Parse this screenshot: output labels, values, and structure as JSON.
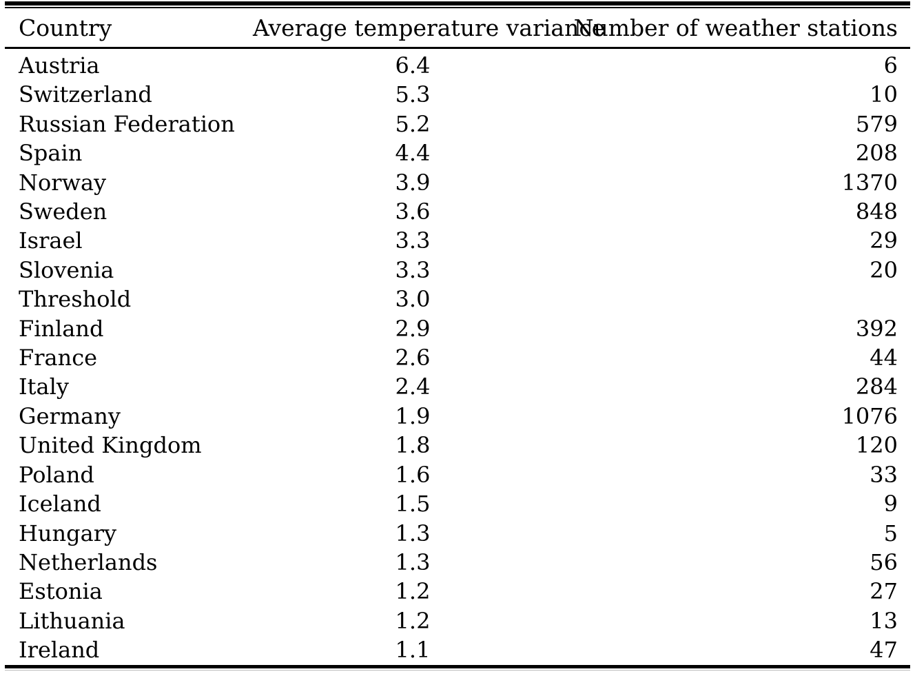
{
  "table": {
    "columns": [
      "Country",
      "Average temperature variance",
      "Number of weather stations"
    ],
    "rows": [
      {
        "country": "Austria",
        "variance": "6.4",
        "stations": "6"
      },
      {
        "country": "Switzerland",
        "variance": "5.3",
        "stations": "10"
      },
      {
        "country": "Russian Federation",
        "variance": "5.2",
        "stations": "579"
      },
      {
        "country": "Spain",
        "variance": "4.4",
        "stations": "208"
      },
      {
        "country": "Norway",
        "variance": "3.9",
        "stations": "1370"
      },
      {
        "country": "Sweden",
        "variance": "3.6",
        "stations": "848"
      },
      {
        "country": "Israel",
        "variance": "3.3",
        "stations": "29"
      },
      {
        "country": "Slovenia",
        "variance": "3.3",
        "stations": "20"
      },
      {
        "country": "Threshold",
        "variance": "3.0",
        "stations": ""
      },
      {
        "country": "Finland",
        "variance": "2.9",
        "stations": "392"
      },
      {
        "country": "France",
        "variance": "2.6",
        "stations": "44"
      },
      {
        "country": "Italy",
        "variance": "2.4",
        "stations": "284"
      },
      {
        "country": "Germany",
        "variance": "1.9",
        "stations": "1076"
      },
      {
        "country": "United Kingdom",
        "variance": "1.8",
        "stations": "120"
      },
      {
        "country": "Poland",
        "variance": "1.6",
        "stations": "33"
      },
      {
        "country": "Iceland",
        "variance": "1.5",
        "stations": "9"
      },
      {
        "country": "Hungary",
        "variance": "1.3",
        "stations": "5"
      },
      {
        "country": "Netherlands",
        "variance": "1.3",
        "stations": "56"
      },
      {
        "country": "Estonia",
        "variance": "1.2",
        "stations": "27"
      },
      {
        "country": "Lithuania",
        "variance": "1.2",
        "stations": "13"
      },
      {
        "country": "Ireland",
        "variance": "1.1",
        "stations": "47"
      }
    ]
  },
  "colors": {
    "text": "#000000",
    "background": "#ffffff",
    "rule": "#000000"
  }
}
